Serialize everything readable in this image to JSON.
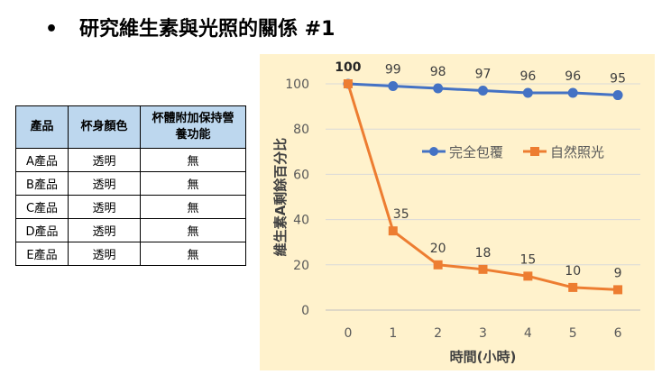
{
  "slide": {
    "bullet": "•",
    "title": "研究維生素與光照的關係 #1"
  },
  "table": {
    "headers": [
      "產品",
      "杯身顏色",
      "杯體附加保持營養功能"
    ],
    "rows": [
      [
        "A產品",
        "透明",
        "無"
      ],
      [
        "B產品",
        "透明",
        "無"
      ],
      [
        "C產品",
        "透明",
        "無"
      ],
      [
        "D產品",
        "透明",
        "無"
      ],
      [
        "E產品",
        "透明",
        "無"
      ]
    ]
  },
  "colors": {
    "header_bg": "#bdd7ee",
    "chart_bg": "#fff2cc",
    "series_covered": "#4472c4",
    "series_light": "#ed7d31"
  },
  "chart_data": {
    "type": "line",
    "xlabel": "時間(小時)",
    "ylabel": "維生素A剩餘百分比",
    "x": [
      0,
      1,
      2,
      3,
      4,
      5,
      6
    ],
    "ylim": [
      0,
      100
    ],
    "yticks": [
      0,
      20,
      40,
      60,
      80,
      100
    ],
    "grid": "horizontal",
    "legend": "center-right",
    "series": [
      {
        "name": "完全包覆",
        "color": "#4472c4",
        "marker": "circle",
        "values": [
          100,
          99,
          98,
          97,
          96,
          96,
          95
        ]
      },
      {
        "name": "自然照光",
        "color": "#ed7d31",
        "marker": "square",
        "values": [
          100,
          35,
          20,
          18,
          15,
          10,
          9
        ]
      }
    ]
  }
}
